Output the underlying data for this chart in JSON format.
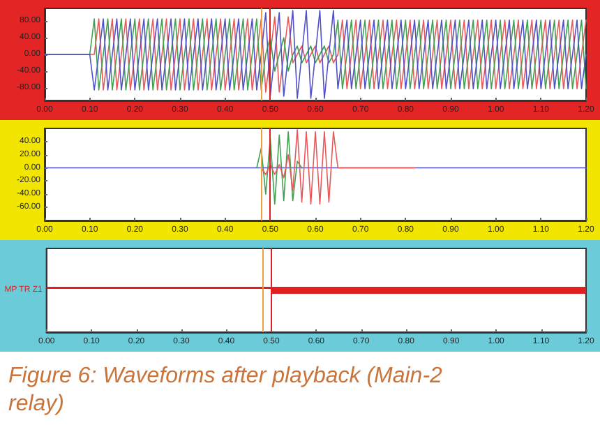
{
  "chart_data": [
    {
      "type": "line",
      "marker": "none",
      "x": [
        0,
        0.1,
        0.11,
        0.12,
        0.13,
        0.14,
        0.15,
        0.16,
        0.17,
        0.18,
        0.19,
        0.2,
        0.21,
        0.22,
        0.23,
        0.24,
        0.25,
        0.26,
        0.27,
        0.28,
        0.29,
        0.3,
        0.31,
        0.32,
        0.33,
        0.34,
        0.35,
        0.36,
        0.37,
        0.38,
        0.39,
        0.4,
        0.41,
        0.42,
        0.43,
        0.44,
        0.45,
        0.46,
        0.47,
        0.48,
        0.49,
        0.5,
        0.51,
        0.52,
        0.53,
        0.54,
        0.55,
        0.56,
        0.57,
        0.58,
        0.59,
        0.6,
        0.61,
        0.62,
        0.63,
        0.64,
        0.65,
        0.66,
        0.67,
        0.68,
        0.69,
        0.7,
        0.71,
        0.72,
        0.73,
        0.74,
        0.75,
        0.76,
        0.77,
        0.78,
        0.79,
        0.8,
        0.81,
        0.82,
        0.83,
        0.84,
        0.85,
        0.86,
        0.87,
        0.88,
        0.89,
        0.9,
        0.91,
        0.92,
        0.93,
        0.94,
        0.95,
        0.96,
        0.97,
        0.98,
        0.99,
        1,
        1.01,
        1.02,
        1.03,
        1.04,
        1.05,
        1.06,
        1.07,
        1.08,
        1.09,
        1.1,
        1.11,
        1.12,
        1.13,
        1.14,
        1.15,
        1.16,
        1.17,
        1.18,
        1.19,
        1.2
      ],
      "series": [
        {
          "color": "#e8585a",
          "values": [
            0,
            0,
            0,
            85,
            -85,
            0,
            85,
            -85,
            0,
            85,
            -85,
            0,
            85,
            -85,
            0,
            85,
            -85,
            0,
            85,
            -85,
            0,
            85,
            -85,
            0,
            85,
            -85,
            0,
            85,
            -85,
            0,
            85,
            -85,
            0,
            85,
            -85,
            0,
            85,
            -85,
            0,
            85,
            -90,
            0,
            90,
            -90,
            0,
            90,
            -20,
            0,
            20,
            -20,
            0,
            20,
            -20,
            0,
            20,
            -20,
            0,
            82,
            -82,
            0,
            82,
            -82,
            0,
            82,
            -82,
            0,
            82,
            -82,
            0,
            82,
            -82,
            0,
            82,
            -82,
            0,
            82,
            -82,
            0,
            82,
            -82,
            0,
            82,
            -82,
            0,
            82,
            -82,
            0,
            82,
            -82,
            0,
            82,
            -82,
            0,
            82,
            -82,
            0,
            82,
            -82,
            0,
            82,
            -82,
            0,
            82,
            -82,
            0,
            82,
            -82,
            0,
            82,
            -82,
            0,
            82
          ]
        },
        {
          "color": "#40a050",
          "values": [
            0,
            0,
            85,
            -85,
            0,
            85,
            -85,
            0,
            85,
            -85,
            0,
            85,
            -85,
            0,
            85,
            -85,
            0,
            85,
            -85,
            0,
            85,
            -85,
            0,
            85,
            -85,
            0,
            85,
            -85,
            0,
            85,
            -85,
            0,
            85,
            -85,
            0,
            85,
            -85,
            0,
            85,
            -85,
            0,
            40,
            -40,
            0,
            40,
            -40,
            0,
            20,
            -20,
            0,
            20,
            -20,
            0,
            20,
            -20,
            0,
            82,
            -82,
            0,
            82,
            -82,
            0,
            82,
            -82,
            0,
            82,
            -82,
            0,
            82,
            -82,
            0,
            82,
            -82,
            0,
            82,
            -82,
            0,
            82,
            -82,
            0,
            82,
            -82,
            0,
            82,
            -82,
            0,
            82,
            -82,
            0,
            82,
            -82,
            0,
            82,
            -82,
            0,
            82,
            -82,
            0,
            82,
            -82,
            0,
            82,
            -82,
            0,
            82,
            -82,
            0,
            82,
            -82,
            0,
            82,
            -82
          ]
        },
        {
          "color": "#5050c8",
          "values": [
            0,
            0,
            -85,
            0,
            85,
            -85,
            0,
            85,
            -85,
            0,
            85,
            -85,
            0,
            85,
            -85,
            0,
            85,
            -85,
            0,
            85,
            -85,
            0,
            85,
            -85,
            0,
            85,
            -85,
            0,
            85,
            -85,
            0,
            85,
            -85,
            0,
            85,
            -85,
            0,
            85,
            -85,
            0,
            100,
            -100,
            0,
            100,
            -100,
            0,
            105,
            -105,
            0,
            105,
            -105,
            0,
            105,
            -105,
            0,
            105,
            -82,
            0,
            82,
            -82,
            0,
            82,
            -82,
            0,
            82,
            -82,
            0,
            82,
            -82,
            0,
            82,
            -82,
            0,
            82,
            -82,
            0,
            82,
            -82,
            0,
            82,
            -82,
            0,
            82,
            -82,
            0,
            82,
            -82,
            0,
            82,
            -82,
            0,
            82,
            -82,
            0,
            82,
            -82,
            0,
            82,
            -82,
            0,
            82,
            -82,
            0,
            82,
            -82,
            0,
            82,
            -82,
            0,
            82,
            -82,
            0
          ]
        }
      ],
      "xlim": [
        0,
        1.2
      ],
      "xticks": [
        {
          "value": 0,
          "label": "0.00"
        },
        {
          "value": 0.1,
          "label": "0.10"
        },
        {
          "value": 0.2,
          "label": "0.20"
        },
        {
          "value": 0.3,
          "label": "0.30"
        },
        {
          "value": 0.4,
          "label": "0.40"
        },
        {
          "value": 0.5,
          "label": "0.50"
        },
        {
          "value": 0.6,
          "label": "0.60"
        },
        {
          "value": 0.7,
          "label": "0.70"
        },
        {
          "value": 0.8,
          "label": "0.80"
        },
        {
          "value": 0.9,
          "label": "0.90"
        },
        {
          "value": 1,
          "label": "1.00"
        },
        {
          "value": 1.1,
          "label": "1.10"
        },
        {
          "value": 1.2,
          "label": "1.20"
        }
      ],
      "ylim": [
        -110,
        110
      ],
      "yticks": [
        {
          "value": -80,
          "label": "-80.00"
        },
        {
          "value": -40,
          "label": "-40.00"
        },
        {
          "value": 0,
          "label": "0.00"
        },
        {
          "value": 40,
          "label": "40.00"
        },
        {
          "value": 80,
          "label": "80.00"
        }
      ],
      "ref_lines": [
        {
          "axis": "x",
          "value": 0.485,
          "color": "#f0a040"
        },
        {
          "axis": "x",
          "value": 0.5,
          "color": "#e02020"
        }
      ]
    },
    {
      "type": "line",
      "marker": "none",
      "series": [
        {
          "color": "#5050c8",
          "x": [
            0,
            1.2
          ],
          "values": [
            0,
            0
          ]
        },
        {
          "color": "#40a050",
          "x": [
            0.47,
            0.48,
            0.49,
            0.5,
            0.51,
            0.52,
            0.53,
            0.54,
            0.55,
            0.56,
            0.57
          ],
          "values": [
            0,
            30,
            -40,
            45,
            -55,
            50,
            -50,
            55,
            -50,
            10,
            0
          ]
        },
        {
          "color": "#e8585a",
          "x": [
            0.48,
            0.49,
            0.5,
            0.51,
            0.52,
            0.53,
            0.54,
            0.55,
            0.56,
            0.57,
            0.58,
            0.59,
            0.6,
            0.61,
            0.62,
            0.63,
            0.64,
            0.65,
            0.82
          ],
          "values": [
            0,
            -10,
            5,
            -10,
            5,
            -15,
            20,
            -35,
            58,
            -52,
            55,
            -55,
            55,
            -55,
            55,
            -52,
            55,
            0,
            0
          ]
        }
      ],
      "xlim": [
        0,
        1.2
      ],
      "xticks": [
        {
          "value": 0,
          "label": "0.00"
        },
        {
          "value": 0.1,
          "label": "0.10"
        },
        {
          "value": 0.2,
          "label": "0.20"
        },
        {
          "value": 0.3,
          "label": "0.30"
        },
        {
          "value": 0.4,
          "label": "0.40"
        },
        {
          "value": 0.5,
          "label": "0.50"
        },
        {
          "value": 0.6,
          "label": "0.60"
        },
        {
          "value": 0.7,
          "label": "0.70"
        },
        {
          "value": 0.8,
          "label": "0.80"
        },
        {
          "value": 0.9,
          "label": "0.90"
        },
        {
          "value": 1,
          "label": "1.00"
        },
        {
          "value": 1.1,
          "label": "1.10"
        },
        {
          "value": 1.2,
          "label": "1.20"
        }
      ],
      "ylim": [
        -80,
        60
      ],
      "yticks": [
        {
          "value": -60,
          "label": "-60.00"
        },
        {
          "value": -40,
          "label": "-40.00"
        },
        {
          "value": -20,
          "label": "-20.00"
        },
        {
          "value": 0,
          "label": "0.00"
        },
        {
          "value": 20,
          "label": "20.00"
        },
        {
          "value": 40,
          "label": "40.00"
        }
      ],
      "ref_lines": [
        {
          "axis": "x",
          "value": 0.485,
          "color": "#f0a040"
        },
        {
          "axis": "x",
          "value": 0.5,
          "color": "#e02020"
        }
      ]
    },
    {
      "type": "bar",
      "orientation": "horizontal",
      "categories": [
        "MP TR Z1"
      ],
      "series": [
        {
          "color": "#e02020",
          "values": [
            0.5
          ]
        },
        {
          "color": "#e02020",
          "values": [
            0.7
          ],
          "base": [
            0.5
          ]
        }
      ],
      "xlim": [
        0,
        1.2
      ],
      "xticks": [
        {
          "value": 0,
          "label": "0.00"
        },
        {
          "value": 0.1,
          "label": "0.10"
        },
        {
          "value": 0.2,
          "label": "0.20"
        },
        {
          "value": 0.3,
          "label": "0.30"
        },
        {
          "value": 0.4,
          "label": "0.40"
        },
        {
          "value": 0.5,
          "label": "0.50"
        },
        {
          "value": 0.6,
          "label": "0.60"
        },
        {
          "value": 0.7,
          "label": "0.70"
        },
        {
          "value": 0.8,
          "label": "0.80"
        },
        {
          "value": 0.9,
          "label": "0.90"
        },
        {
          "value": 1,
          "label": "1.00"
        },
        {
          "value": 1.1,
          "label": "1.10"
        },
        {
          "value": 1.2,
          "label": "1.20"
        }
      ],
      "ref_lines": [
        {
          "axis": "x",
          "value": 0.485,
          "color": "#f0a040"
        },
        {
          "axis": "x",
          "value": 0.5,
          "color": "#e02020"
        }
      ],
      "annotations": [
        "Figure 6: Waveforms after playback (Main-2 relay)"
      ]
    }
  ]
}
